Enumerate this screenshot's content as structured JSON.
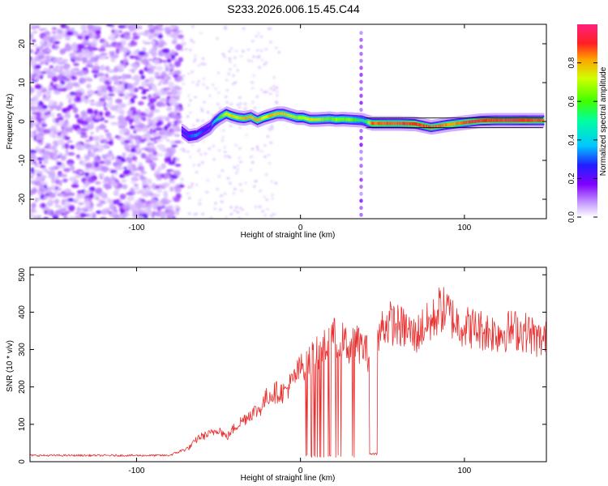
{
  "title": "S233.2026.006.15.45.C44",
  "chart_data": [
    {
      "type": "heatmap",
      "name": "spectrogram",
      "xlabel": "Height of straight line (km)",
      "ylabel": "Frequency (Hz)",
      "xlim": [
        -165,
        150
      ],
      "ylim": [
        -25,
        25
      ],
      "xticks": [
        -100,
        0,
        100
      ],
      "yticks": [
        -20,
        -10,
        0,
        10,
        20
      ],
      "colorbar": {
        "label": "Normalized spectral amplitude",
        "range": [
          0.0,
          1.0
        ],
        "ticks": [
          0.0,
          0.2,
          0.4,
          0.6,
          0.8
        ]
      },
      "noise_region": {
        "x": [
          -165,
          -73
        ],
        "y": [
          -25,
          25
        ]
      },
      "ridge": {
        "x": [
          -72,
          -68,
          -63,
          -59,
          -55,
          -52,
          -49,
          -45,
          -42,
          -38,
          -34,
          -30,
          -26,
          -22,
          -18,
          -14,
          -10,
          -6,
          -2,
          2,
          6,
          10,
          14,
          18,
          22,
          26,
          30,
          34,
          38,
          40,
          44,
          50,
          60,
          70,
          80,
          90,
          100,
          110,
          120,
          130,
          140,
          148
        ],
        "freq": [
          -2.5,
          -3.8,
          -3.5,
          -2.5,
          -1.5,
          0,
          1,
          2,
          1.5,
          1,
          0.8,
          1.2,
          0.3,
          1,
          1.5,
          2,
          2,
          1.5,
          1,
          1,
          0.5,
          0.5,
          0.6,
          0.7,
          0.5,
          0.6,
          0.5,
          0.4,
          0.3,
          0,
          -0.5,
          -0.5,
          -0.5,
          -0.6,
          -1.5,
          -0.8,
          -0.3,
          0.2,
          0.3,
          0.3,
          0.3,
          0.3
        ],
        "amplitude": [
          0.25,
          0.3,
          0.35,
          0.3,
          0.25,
          0.45,
          0.6,
          0.75,
          0.8,
          0.75,
          0.85,
          0.8,
          0.85,
          0.75,
          0.85,
          0.8,
          0.8,
          0.75,
          0.7,
          0.7,
          0.8,
          0.75,
          0.7,
          0.65,
          0.7,
          0.65,
          0.7,
          0.6,
          0.55,
          0.55,
          0.9,
          0.9,
          0.9,
          0.95,
          0.9,
          0.85,
          0.9,
          0.95,
          0.95,
          0.95,
          0.95,
          0.9
        ]
      }
    },
    {
      "type": "line",
      "name": "snr",
      "xlabel": "Height of straight line (km)",
      "ylabel": "SNR (10 * v/v)",
      "xlim": [
        -165,
        150
      ],
      "ylim": [
        0,
        520
      ],
      "xticks": [
        -100,
        0,
        100
      ],
      "yticks": [
        0,
        100,
        200,
        300,
        400,
        500
      ],
      "color": "#e83030",
      "envelope_x": [
        -165,
        -120,
        -80,
        -68,
        -62,
        -55,
        -50,
        -45,
        -40,
        -35,
        -30,
        -25,
        -20,
        -15,
        -10,
        -5,
        0,
        5,
        10,
        15,
        20,
        25,
        30,
        35,
        40,
        42,
        45,
        50,
        55,
        60,
        65,
        70,
        75,
        80,
        85,
        90,
        95,
        100,
        110,
        120,
        130,
        140,
        145,
        150
      ],
      "envelope_snr": [
        18,
        18,
        18,
        40,
        70,
        80,
        95,
        70,
        100,
        120,
        140,
        150,
        190,
        200,
        200,
        230,
        270,
        290,
        310,
        330,
        360,
        350,
        330,
        340,
        320,
        300,
        310,
        390,
        400,
        390,
        380,
        360,
        390,
        400,
        440,
        430,
        400,
        390,
        380,
        370,
        380,
        370,
        350,
        350
      ],
      "dropouts": [
        [
          2,
          33
        ],
        [
          42,
          47
        ]
      ]
    }
  ]
}
